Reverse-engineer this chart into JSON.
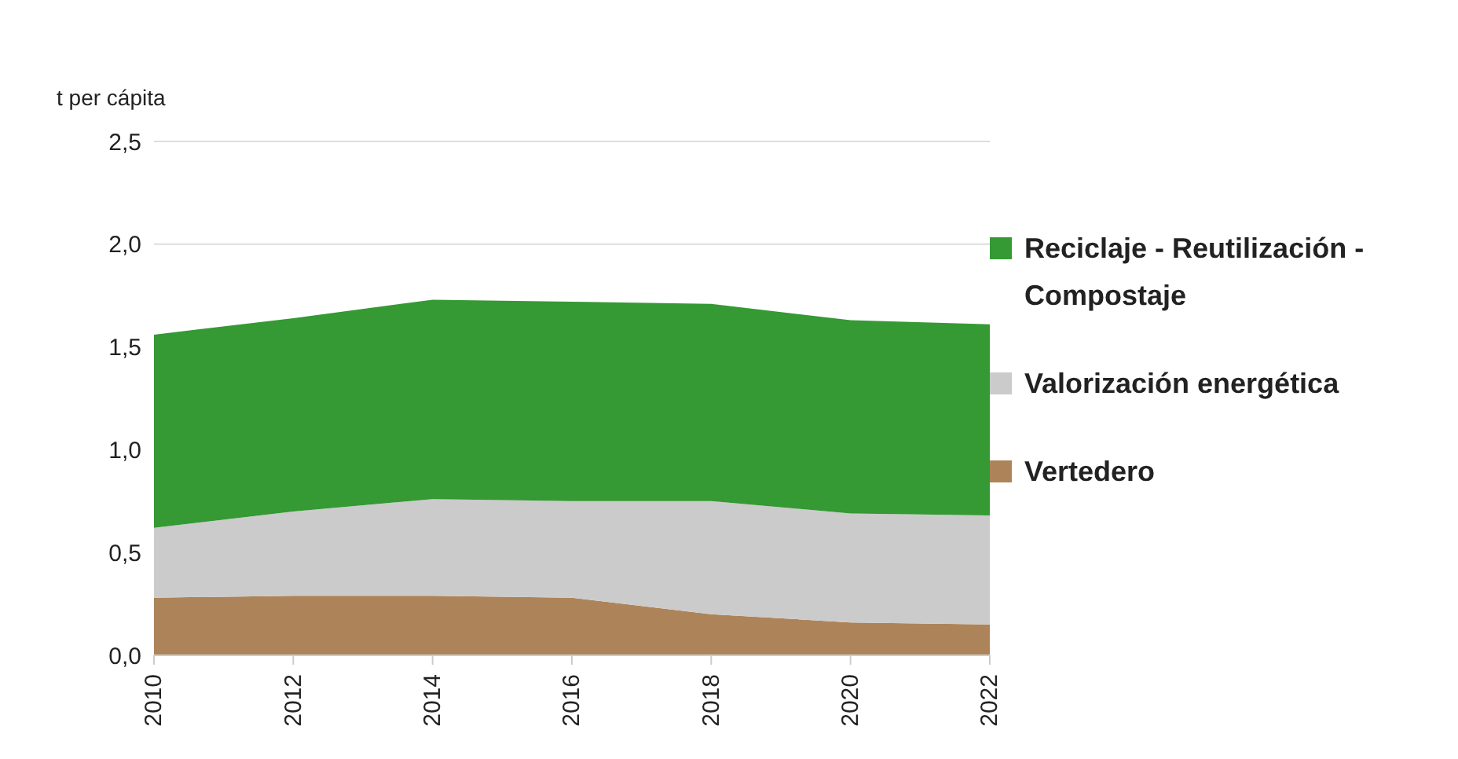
{
  "chart_data": {
    "type": "area",
    "stacked": true,
    "ylabel": "t per cápita",
    "x": [
      2010,
      2012,
      2014,
      2016,
      2018,
      2020,
      2022
    ],
    "xlim": [
      2010,
      2022
    ],
    "xticks": [
      2010,
      2012,
      2014,
      2016,
      2018,
      2020,
      2022
    ],
    "ylim": [
      0,
      2.5
    ],
    "yticks": [
      {
        "value": 0,
        "label": "0,0"
      },
      {
        "value": 0.5,
        "label": "0,5"
      },
      {
        "value": 1,
        "label": "1,0"
      },
      {
        "value": 1.5,
        "label": "1,5"
      },
      {
        "value": 2,
        "label": "2,0"
      },
      {
        "value": 2.5,
        "label": "2,5"
      }
    ],
    "grid": "y",
    "legend": "right",
    "series": [
      {
        "name": "Vertedero",
        "color": "#ad8459",
        "values": [
          0.28,
          0.29,
          0.29,
          0.28,
          0.2,
          0.16,
          0.15
        ]
      },
      {
        "name": "Valorización energética",
        "color": "#cbcbcb",
        "values": [
          0.34,
          0.41,
          0.47,
          0.47,
          0.55,
          0.53,
          0.53
        ]
      },
      {
        "name": "Reciclaje - Reutilización - Compostaje",
        "color": "#359934",
        "values": [
          0.94,
          0.94,
          0.97,
          0.97,
          0.96,
          0.94,
          0.93
        ]
      }
    ]
  }
}
